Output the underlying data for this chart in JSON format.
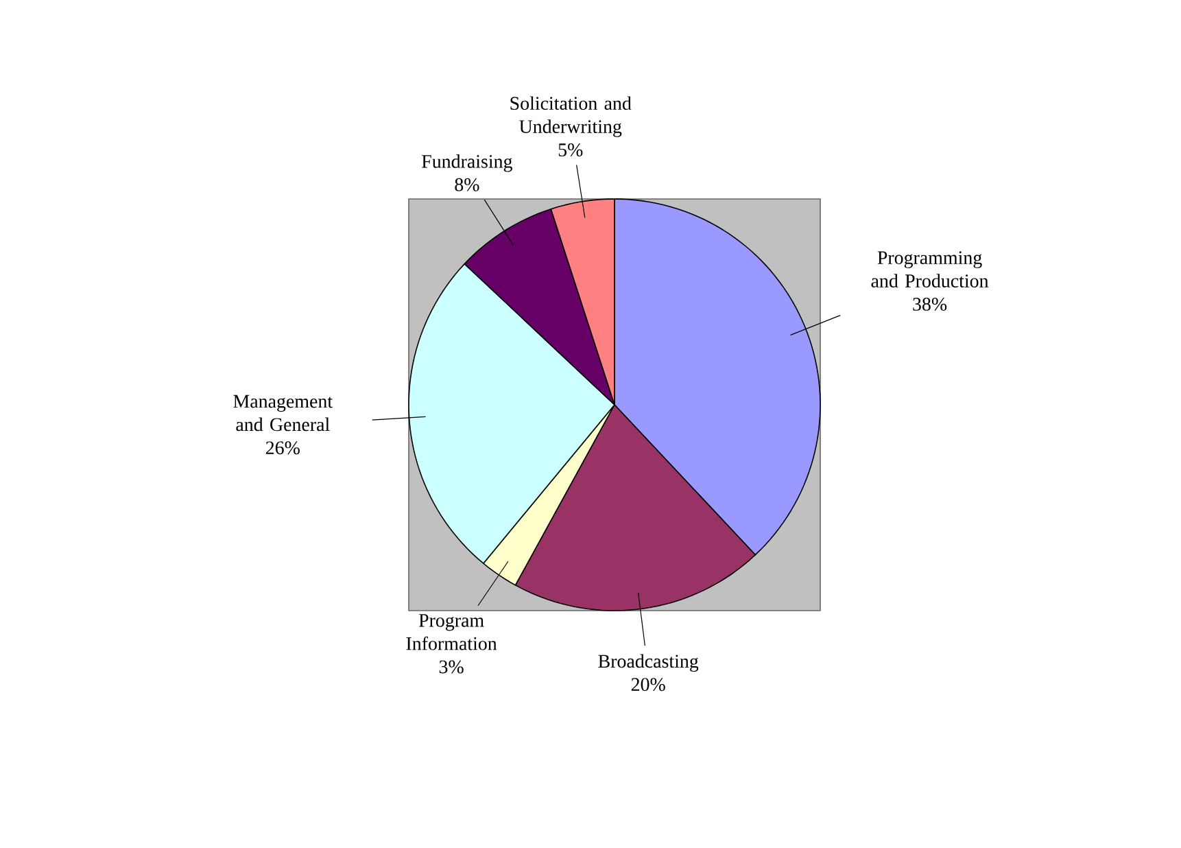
{
  "chart_data": {
    "type": "pie",
    "categories": [
      "Programming and Production",
      "Broadcasting",
      "Program Information",
      "Management and General",
      "Fundraising",
      "Solicitation and Underwriting"
    ],
    "values": [
      38,
      20,
      3,
      26,
      8,
      5
    ],
    "value_labels": [
      "38%",
      "20%",
      "3%",
      "26%",
      "8%",
      "5%"
    ],
    "colors": [
      "#9999ff",
      "#993366",
      "#ffffcc",
      "#ccffff",
      "#660066",
      "#ff8080"
    ]
  }
}
